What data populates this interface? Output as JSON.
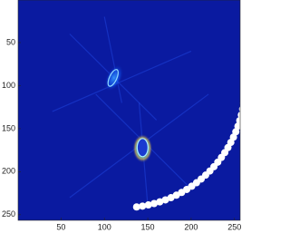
{
  "chart_data": {
    "type": "image",
    "colormap": "jet",
    "xlim": [
      0.5,
      256.5
    ],
    "ylim": [
      0.5,
      256.5
    ],
    "y_reversed": true,
    "xticks": [
      50,
      100,
      150,
      200,
      250
    ],
    "yticks": [
      50,
      100,
      150,
      200,
      250
    ]
  }
}
